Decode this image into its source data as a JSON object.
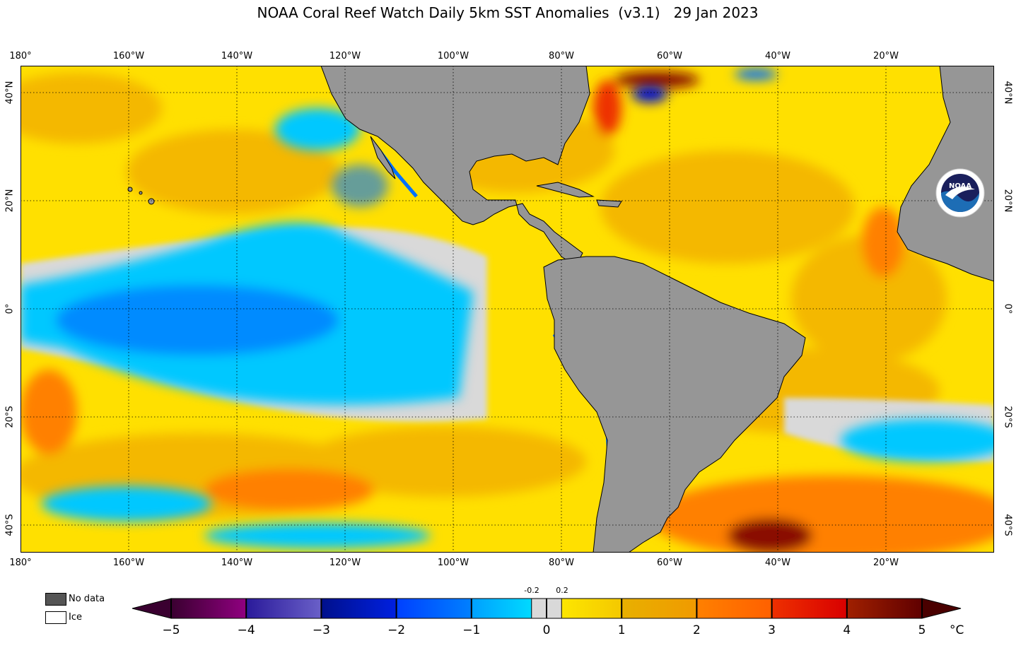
{
  "title": "NOAA Coral Reef Watch Daily 5km SST Anomalies  (v3.1)   29 Jan 2023",
  "longitude_ticks": [
    "180°",
    "160°W",
    "140°W",
    "120°W",
    "100°W",
    "80°W",
    "60°W",
    "40°W",
    "20°W"
  ],
  "latitude_ticks_left": [
    "40°N",
    "20°N",
    "0°",
    "20°S",
    "40°S"
  ],
  "latitude_ticks_right": [
    "40°N",
    "20°N",
    "0°",
    "20°S",
    "40°S"
  ],
  "legend": {
    "no_data_label": "No data",
    "no_data_color": "#555555",
    "ice_label": "Ice",
    "ice_color": "#ffffff"
  },
  "colorbar": {
    "unit": "°C",
    "tick_labels": [
      "−5",
      "−4",
      "−3",
      "−2",
      "−1",
      "0",
      "1",
      "2",
      "3",
      "4",
      "5"
    ],
    "small_labels": [
      "-0.2",
      "0.2"
    ],
    "colors": {
      "land": "#969696",
      "neutral": "#d9d9d9",
      "weak_warm": "#ffe000",
      "warm": "#f4b800",
      "hot": "#ff8000",
      "very_hot": "#ee3000",
      "extreme_hot": "#8a0d00",
      "weak_cool": "#00c8ff",
      "cool": "#0070ff",
      "cold": "#0010cc",
      "very_cold": "#3a2bb0",
      "extreme_cold": "#700080"
    }
  },
  "logo_text": "NOAA"
}
